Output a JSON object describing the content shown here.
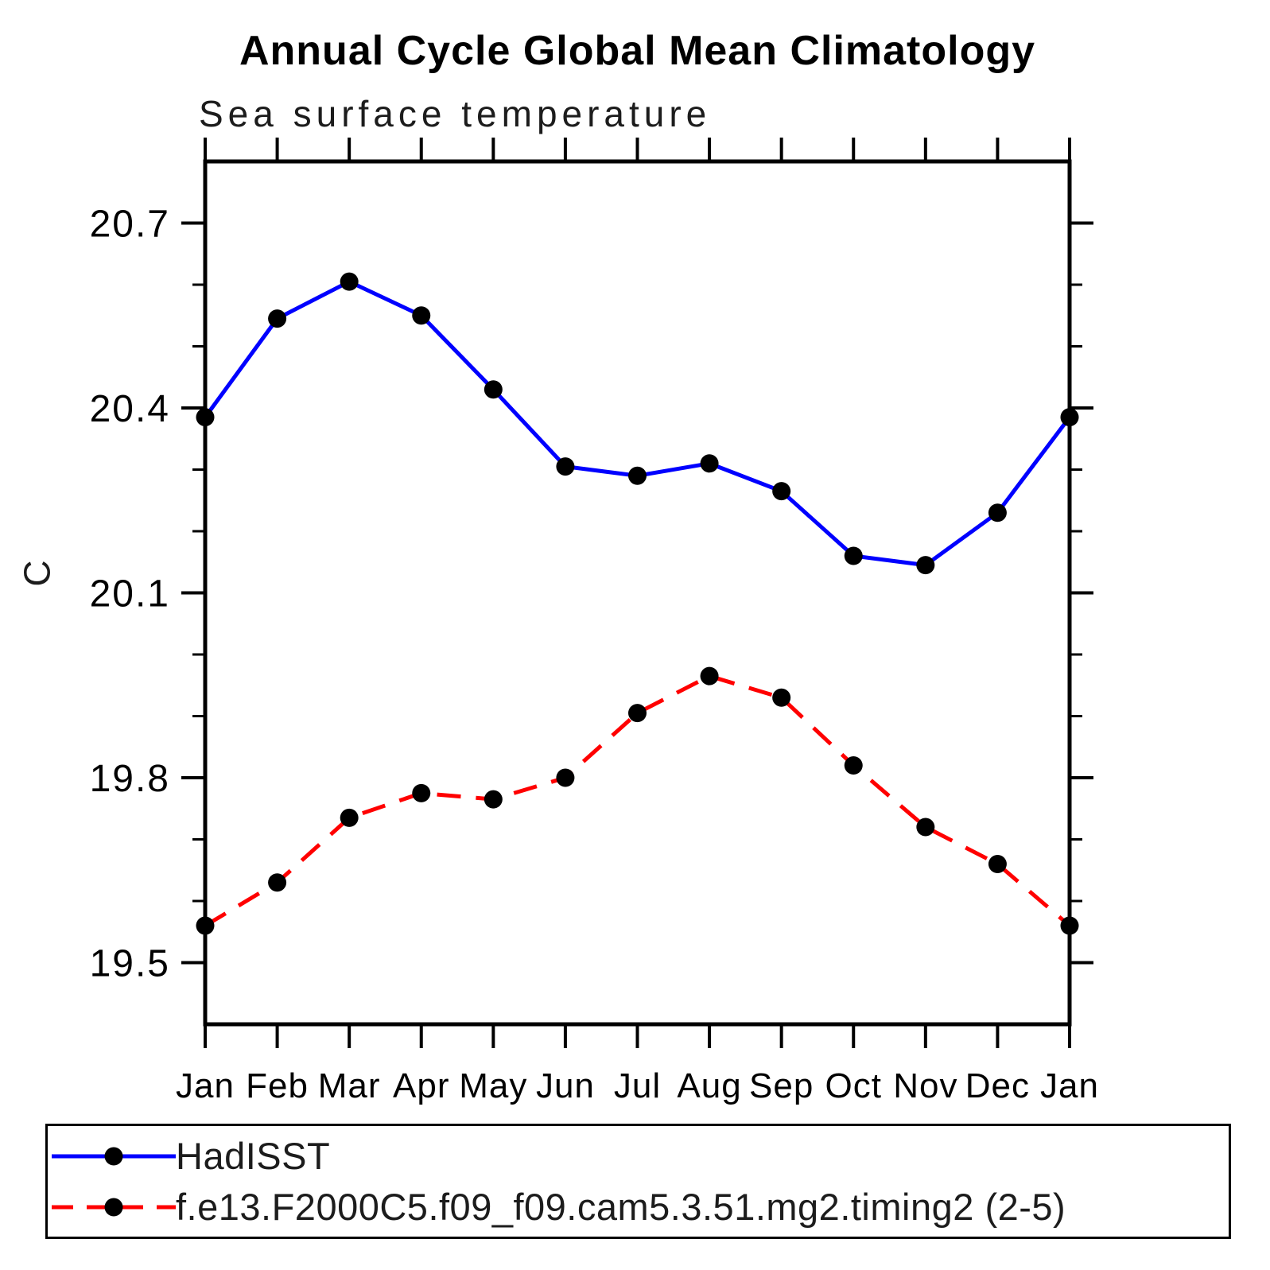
{
  "title": "Annual Cycle Global Mean Climatology",
  "subtitle": "Sea surface temperature",
  "ylabel": "C",
  "chart_data": {
    "type": "line",
    "title": "Annual Cycle Global Mean Climatology",
    "subtitle": "Sea surface temperature",
    "xlabel": "",
    "ylabel": "C",
    "categories": [
      "Jan",
      "Feb",
      "Mar",
      "Apr",
      "May",
      "Jun",
      "Jul",
      "Aug",
      "Sep",
      "Oct",
      "Nov",
      "Dec",
      "Jan"
    ],
    "series": [
      {
        "name": "HadISST",
        "color": "#0000ff",
        "line_style": "solid",
        "marker": "filled-circle",
        "marker_color": "#000000",
        "values": [
          20.385,
          20.545,
          20.605,
          20.55,
          20.43,
          20.305,
          20.29,
          20.31,
          20.265,
          20.16,
          20.145,
          20.23,
          20.385
        ]
      },
      {
        "name": "f.e13.F2000C5.f09_f09.cam5.3.51.mg2.timing2 (2-5)",
        "color": "#ff0000",
        "line_style": "dashed",
        "marker": "filled-circle",
        "marker_color": "#000000",
        "values": [
          19.56,
          19.63,
          19.735,
          19.775,
          19.765,
          19.8,
          19.905,
          19.965,
          19.93,
          19.82,
          19.72,
          19.66,
          19.56
        ]
      }
    ],
    "ylim": [
      19.4,
      20.8
    ],
    "ytick_major": [
      20.7,
      20.4,
      20.1,
      19.8,
      19.5
    ],
    "ytick_labels": [
      "20.7",
      "20.4",
      "20.1",
      "19.8",
      "19.5"
    ],
    "ytick_minor_step": 0.1,
    "grid": false,
    "tick_direction": "out",
    "legend_position": "bottom"
  }
}
